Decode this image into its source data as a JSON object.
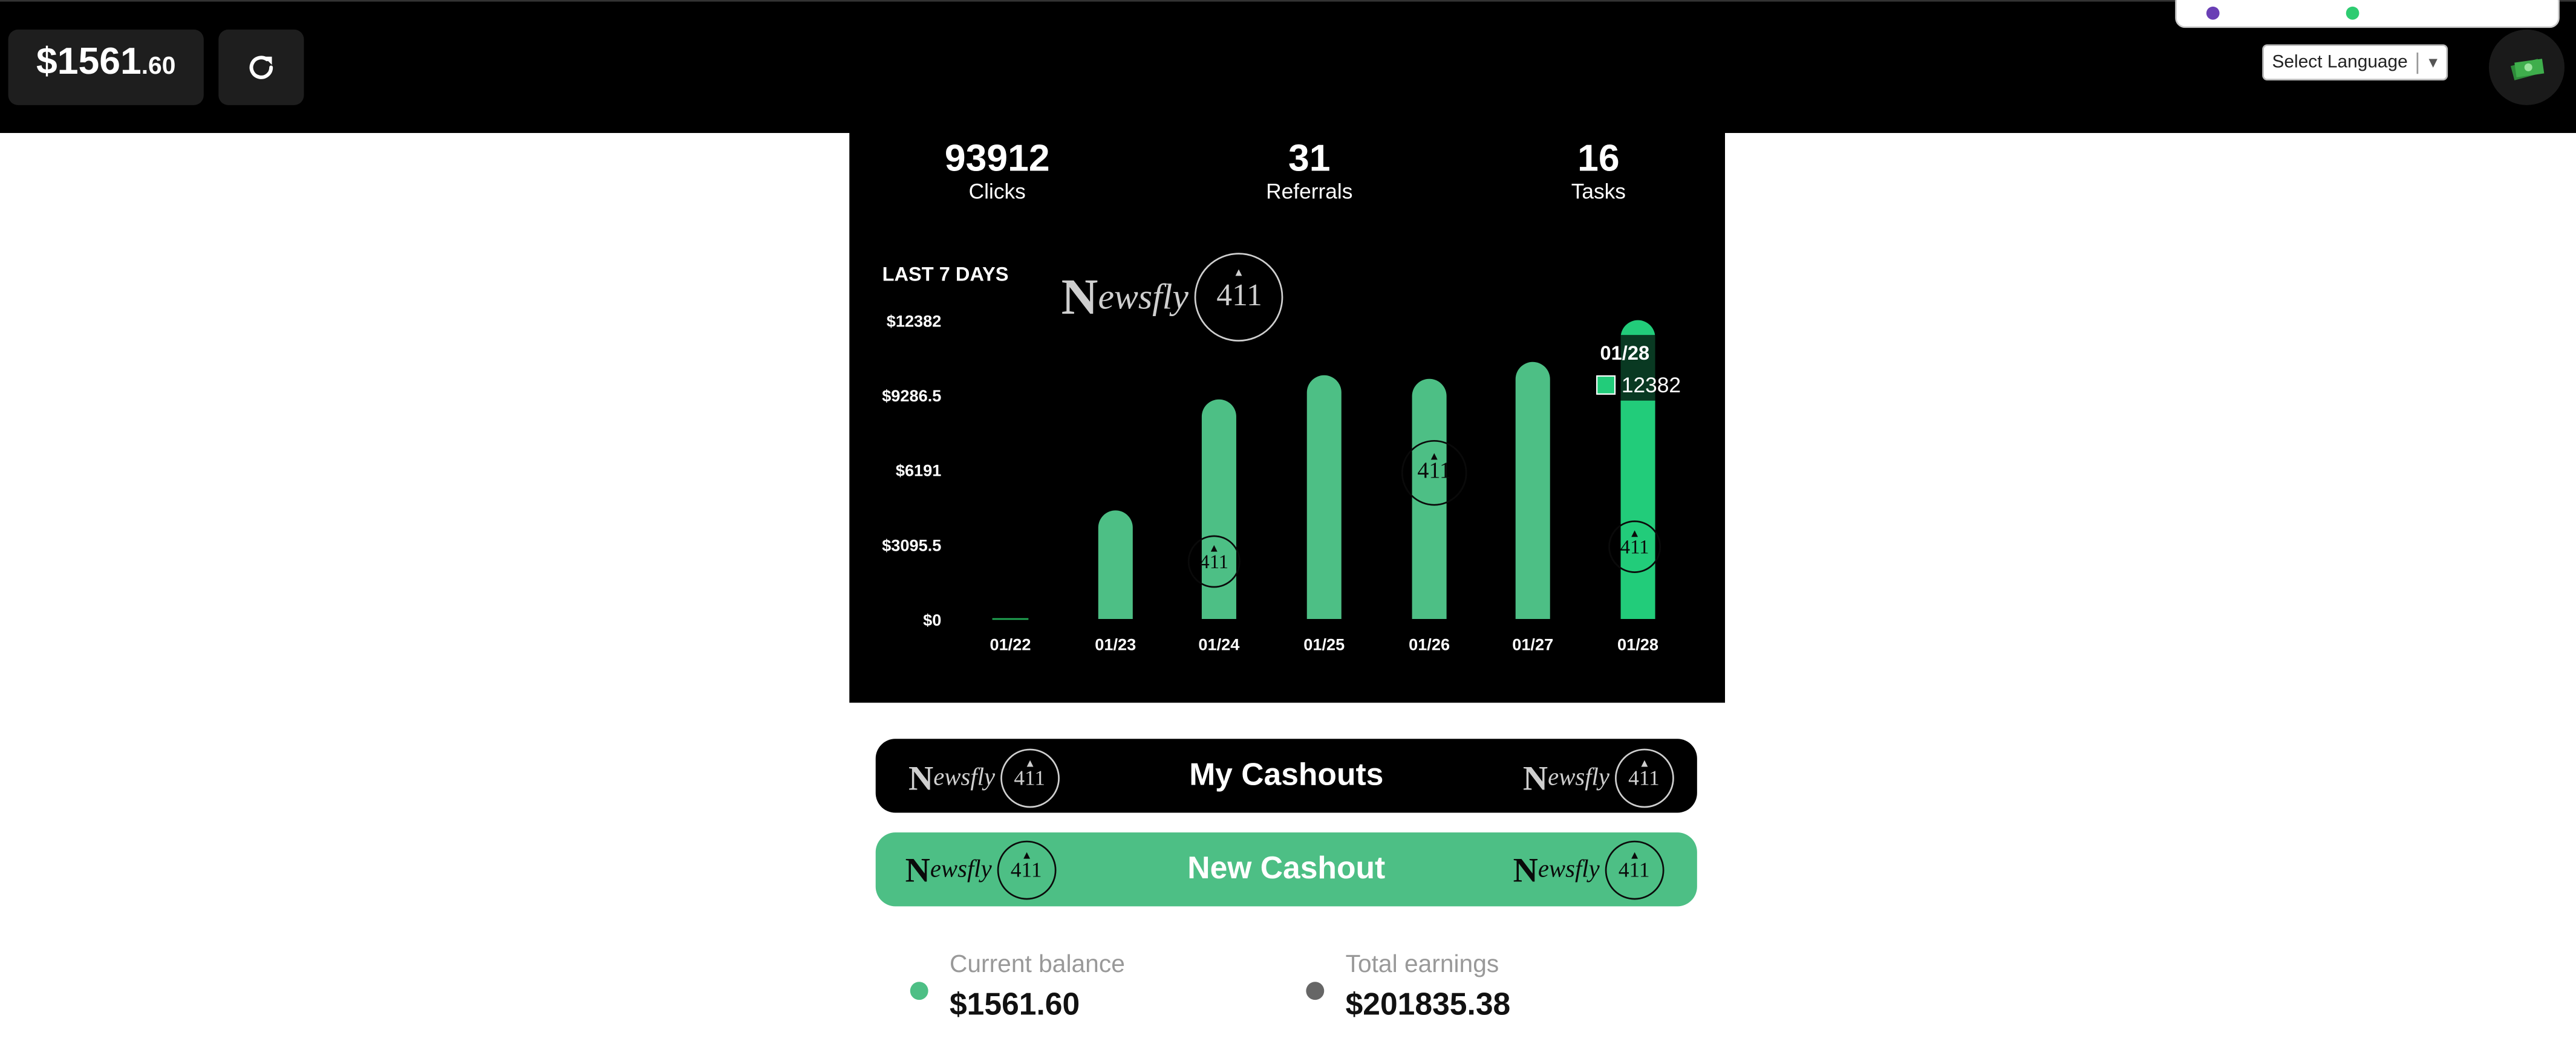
{
  "header": {
    "balance_main": "$1561",
    "balance_cents": ".60",
    "refresh_icon": "refresh-icon",
    "language_select": "Select Language",
    "avatar_icon": "money-icon"
  },
  "stats": [
    {
      "value": "93912",
      "label": "Clicks"
    },
    {
      "value": "31",
      "label": "Referrals"
    },
    {
      "value": "16",
      "label": "Tasks"
    }
  ],
  "brand": {
    "n": "N",
    "rest": "ewsfly",
    "num": "411"
  },
  "chart_title": "LAST 7 DAYS",
  "chart_data": {
    "type": "bar",
    "title": "LAST 7 DAYS",
    "categories": [
      "01/22",
      "01/23",
      "01/24",
      "01/25",
      "01/26",
      "01/27",
      "01/28"
    ],
    "values": [
      0,
      4500,
      9100,
      10100,
      9950,
      10650,
      12382
    ],
    "y_ticks": [
      "$12382",
      "$9286.5",
      "$6191",
      "$3095.5",
      "$0"
    ],
    "ylim": [
      0,
      12382
    ],
    "bar_color": "#4dbf85",
    "highlight_color": "#22cc7a",
    "tooltip": {
      "date": "01/28",
      "value": "12382"
    }
  },
  "buttons": {
    "my_cashouts": "My Cashouts",
    "new_cashout": "New Cashout"
  },
  "summary": {
    "current_balance_label": "Current balance",
    "current_balance_value": "$1561.60",
    "total_earnings_label": "Total earnings",
    "total_earnings_value": "$201835.38",
    "current_color": "#4dbf85",
    "total_color": "#666666"
  }
}
